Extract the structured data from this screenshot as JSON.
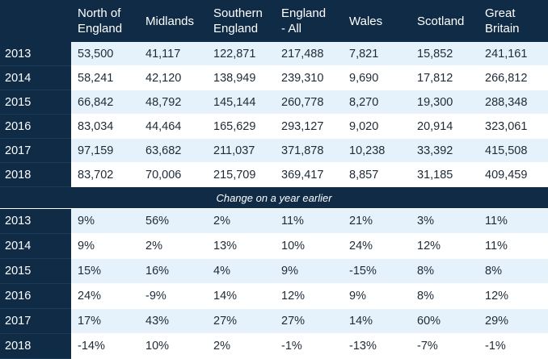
{
  "columns": [
    "North of\nEngland",
    "Midlands",
    "Southern\nEngland",
    "England\n- All",
    "Wales",
    "Scotland",
    "Great\nBritain"
  ],
  "counts": [
    {
      "year": "2013",
      "values": [
        "53,500",
        "41,117",
        "122,871",
        "217,488",
        "7,821",
        "15,852",
        "241,161"
      ]
    },
    {
      "year": "2014",
      "values": [
        "58,241",
        "42,120",
        "138,949",
        "239,310",
        "9,690",
        "17,812",
        "266,812"
      ]
    },
    {
      "year": "2015",
      "values": [
        "66,842",
        "48,792",
        "145,144",
        "260,778",
        "8,270",
        "19,300",
        "288,348"
      ]
    },
    {
      "year": "2016",
      "values": [
        "83,034",
        "44,464",
        "165,629",
        "293,127",
        "9,020",
        "20,914",
        "323,061"
      ]
    },
    {
      "year": "2017",
      "values": [
        "97,159",
        "63,682",
        "211,037",
        "371,878",
        "10,238",
        "33,392",
        "415,508"
      ]
    },
    {
      "year": "2018",
      "values": [
        "83,702",
        "70,006",
        "215,709",
        "369,417",
        "8,857",
        "31,185",
        "409,459"
      ]
    }
  ],
  "change_label": "Change on a year earlier",
  "changes": [
    {
      "year": "2013",
      "values": [
        "9%",
        "56%",
        "2%",
        "11%",
        "21%",
        "3%",
        "11%"
      ]
    },
    {
      "year": "2014",
      "values": [
        "9%",
        "2%",
        "13%",
        "10%",
        "24%",
        "12%",
        "11%"
      ]
    },
    {
      "year": "2015",
      "values": [
        "15%",
        "16%",
        "4%",
        "9%",
        "-15%",
        "8%",
        "8%"
      ]
    },
    {
      "year": "2016",
      "values": [
        "24%",
        "-9%",
        "14%",
        "12%",
        "9%",
        "8%",
        "12%"
      ]
    },
    {
      "year": "2017",
      "values": [
        "17%",
        "43%",
        "27%",
        "27%",
        "14%",
        "60%",
        "29%"
      ]
    },
    {
      "year": "2018",
      "values": [
        "-14%",
        "10%",
        "2%",
        "-1%",
        "-13%",
        "-7%",
        "-1%"
      ]
    }
  ],
  "colors": {
    "header_bg": "#0f2b46",
    "stripe": "#e6f2fb",
    "text": "#1f2a36"
  }
}
